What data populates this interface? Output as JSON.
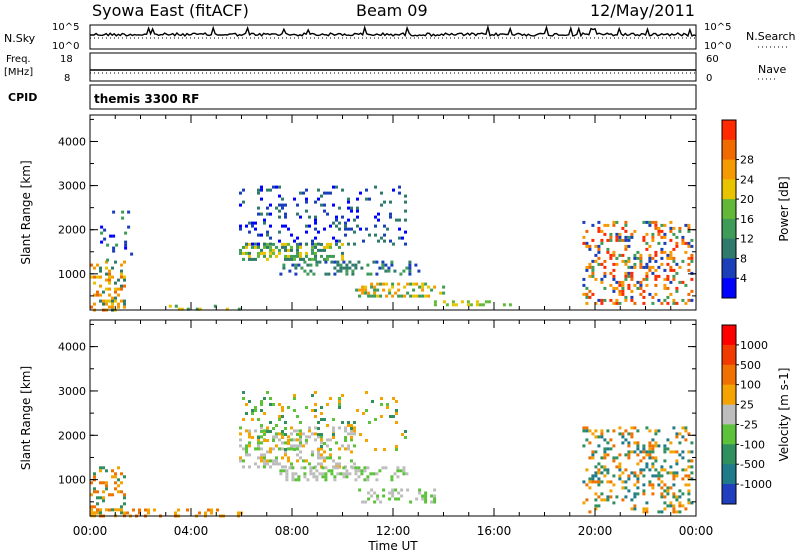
{
  "header": {
    "station": "Syowa East (fitACF)",
    "beam": "Beam 09",
    "date": "12/May/2011"
  },
  "top_panels": {
    "nsky_label": "N.Sky",
    "nsky_ticks": [
      "10^5",
      "10^0"
    ],
    "nsearch_label": "N.Search",
    "nsearch_ticks": [
      "10^5",
      "10^0"
    ],
    "freq_label": "Freq.",
    "freq_unit": "[MHz]",
    "freq_ticks": [
      "18",
      "8"
    ],
    "nave_label": "Nave",
    "nave_ticks": [
      "60",
      "0"
    ],
    "cpid_label": "CPID",
    "cpid_value": "themis 3300 RF"
  },
  "chart_data": [
    {
      "type": "heatmap",
      "name": "power",
      "ylabel": "Slant Range [km]",
      "xlabel": "Time UT",
      "xlim": [
        0,
        24
      ],
      "ylim": [
        180,
        4600
      ],
      "x_ticks": [
        "00:00",
        "04:00",
        "08:00",
        "12:00",
        "16:00",
        "20:00",
        "00:00"
      ],
      "y_ticks": [
        "1000",
        "2000",
        "3000",
        "4000"
      ],
      "colorbar": {
        "label": "Power [dB]",
        "ticks": [
          "4",
          "8",
          "12",
          "16",
          "20",
          "24",
          "28"
        ],
        "colors": [
          "#0000ff",
          "#1a3fb8",
          "#2f7a6a",
          "#3e9b58",
          "#63b83a",
          "#e8c400",
          "#f59a00",
          "#f06a00",
          "#ff2a00"
        ],
        "range": [
          0,
          30
        ]
      },
      "scatter_regions": [
        {
          "x": [
            0.0,
            1.4
          ],
          "y": [
            200,
            1300
          ],
          "density": 0.55,
          "levels": [
            2,
            5,
            6,
            7
          ]
        },
        {
          "x": [
            0.4,
            1.6
          ],
          "y": [
            1300,
            2500
          ],
          "density": 0.15,
          "levels": [
            0,
            1,
            3
          ]
        },
        {
          "x": [
            5.9,
            10.0
          ],
          "y": [
            1300,
            1700
          ],
          "density": 0.8,
          "levels": [
            2,
            3,
            4,
            5
          ]
        },
        {
          "x": [
            5.9,
            12.5
          ],
          "y": [
            1700,
            3000
          ],
          "density": 0.25,
          "levels": [
            0,
            1,
            2
          ]
        },
        {
          "x": [
            7.5,
            13.0
          ],
          "y": [
            1000,
            1300
          ],
          "density": 0.6,
          "levels": [
            1,
            2,
            3
          ]
        },
        {
          "x": [
            10.5,
            14.0
          ],
          "y": [
            500,
            800
          ],
          "density": 0.6,
          "levels": [
            3,
            5,
            6
          ]
        },
        {
          "x": [
            13.5,
            17.0
          ],
          "y": [
            300,
            400
          ],
          "density": 0.7,
          "levels": [
            4,
            5
          ]
        },
        {
          "x": [
            19.5,
            23.8
          ],
          "y": [
            300,
            2200
          ],
          "density": 0.45,
          "levels": [
            1,
            3,
            6,
            7,
            8
          ]
        },
        {
          "x": [
            3.0,
            6.0
          ],
          "y": [
            200,
            300
          ],
          "density": 0.2,
          "levels": [
            3,
            5
          ]
        }
      ]
    },
    {
      "type": "heatmap",
      "name": "velocity",
      "ylabel": "Slant Range [km]",
      "xlabel": "Time UT",
      "xlim": [
        0,
        24
      ],
      "ylim": [
        180,
        4600
      ],
      "x_ticks": [
        "00:00",
        "04:00",
        "08:00",
        "12:00",
        "16:00",
        "20:00",
        "00:00"
      ],
      "y_ticks": [
        "1000",
        "2000",
        "3000",
        "4000"
      ],
      "colorbar": {
        "label": "Velocity [m s-1]",
        "ticks": [
          "1000",
          "500",
          "100",
          "25",
          "-25",
          "-100",
          "-500",
          "-1000"
        ],
        "colors": [
          "#1f3fbf",
          "#1f7a8a",
          "#2f8f5f",
          "#5cc23a",
          "#bdbdbd",
          "#f4a300",
          "#f07000",
          "#f03a00",
          "#ff0000"
        ],
        "range": [
          -1000,
          1000
        ]
      },
      "scatter_regions": [
        {
          "x": [
            0.0,
            1.4
          ],
          "y": [
            200,
            1300
          ],
          "density": 0.5,
          "levels": [
            2,
            5,
            6
          ]
        },
        {
          "x": [
            0.0,
            6.0
          ],
          "y": [
            200,
            350
          ],
          "density": 0.35,
          "levels": [
            5,
            6
          ]
        },
        {
          "x": [
            5.9,
            10.5
          ],
          "y": [
            1300,
            2200
          ],
          "density": 0.55,
          "levels": [
            4,
            4,
            3,
            5
          ]
        },
        {
          "x": [
            7.5,
            12.5
          ],
          "y": [
            1000,
            1300
          ],
          "density": 0.55,
          "levels": [
            4,
            4,
            3
          ]
        },
        {
          "x": [
            10.5,
            14.0
          ],
          "y": [
            500,
            800
          ],
          "density": 0.5,
          "levels": [
            4,
            3
          ]
        },
        {
          "x": [
            5.9,
            12.5
          ],
          "y": [
            1700,
            3000
          ],
          "density": 0.2,
          "levels": [
            3,
            2,
            5
          ]
        },
        {
          "x": [
            19.5,
            23.8
          ],
          "y": [
            300,
            2200
          ],
          "density": 0.45,
          "levels": [
            1,
            2,
            5,
            6
          ]
        }
      ]
    }
  ]
}
